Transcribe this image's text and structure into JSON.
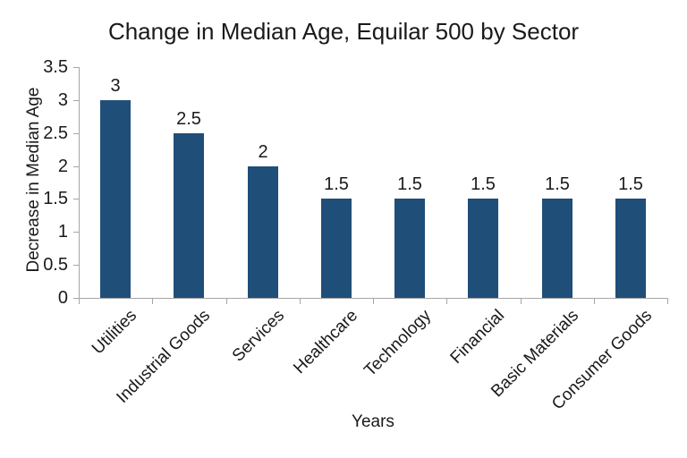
{
  "chart_data": {
    "type": "bar",
    "title": "Change in Median Age, Equilar 500 by Sector",
    "xlabel": "Years",
    "ylabel": "Decrease in Median Age",
    "categories": [
      "Utilities",
      "Industrial Goods",
      "Services",
      "Healthcare",
      "Technology",
      "Financial",
      "Basic Materials",
      "Consumer Goods"
    ],
    "values": [
      3,
      2.5,
      2,
      1.5,
      1.5,
      1.5,
      1.5,
      1.5
    ],
    "data_labels": [
      "3",
      "2.5",
      "2",
      "1.5",
      "1.5",
      "1.5",
      "1.5",
      "1.5"
    ],
    "ylim": [
      0,
      3.5
    ],
    "ytick_step": 0.5,
    "ytick_labels": [
      "0",
      "0.5",
      "1",
      "1.5",
      "2",
      "2.5",
      "3",
      "3.5"
    ],
    "grid": false,
    "legend": false,
    "bar_color": "#1f4e79",
    "axis_color": "#a6a6a6",
    "text_color": "#1a1a1a"
  }
}
